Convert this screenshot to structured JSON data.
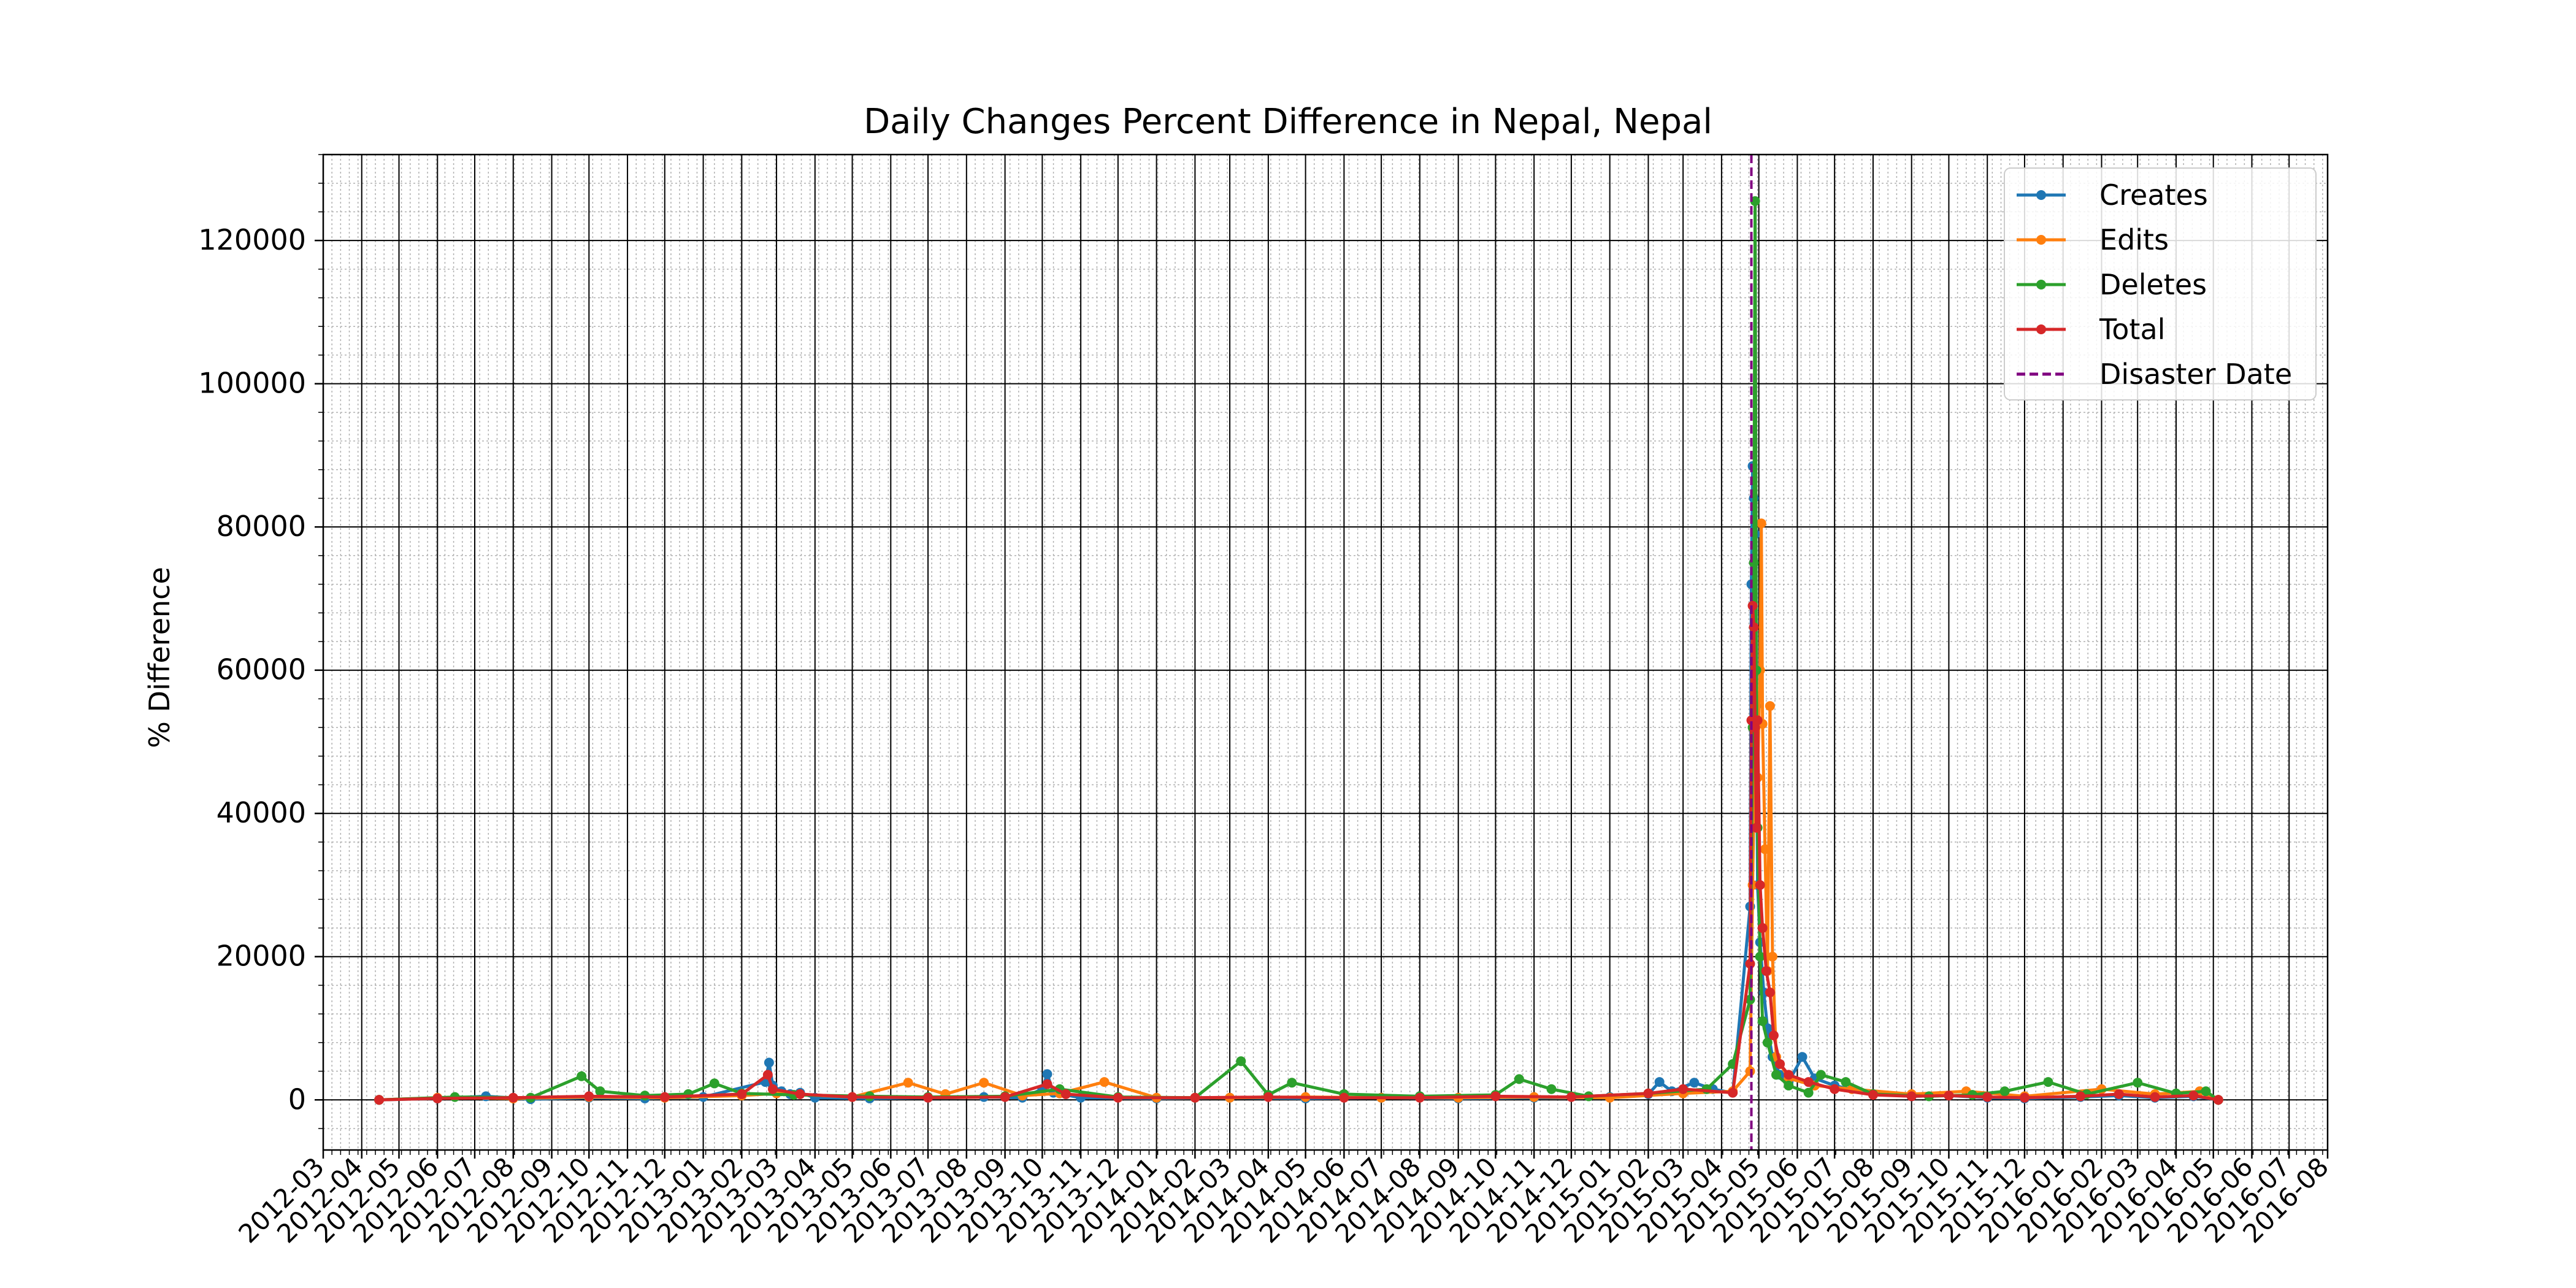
{
  "chart_data": {
    "type": "line",
    "title": "Daily Changes Percent Difference in Nepal, Nepal",
    "xlabel": "",
    "ylabel": "% Difference",
    "x_axis": {
      "type": "date",
      "range": [
        "2012-03-01",
        "2016-08-01"
      ],
      "tick_labels": [
        "2012-03",
        "2012-04",
        "2012-05",
        "2012-06",
        "2012-07",
        "2012-08",
        "2012-09",
        "2012-10",
        "2012-11",
        "2012-12",
        "2013-01",
        "2013-02",
        "2013-03",
        "2013-04",
        "2013-05",
        "2013-06",
        "2013-07",
        "2013-08",
        "2013-09",
        "2013-10",
        "2013-11",
        "2013-12",
        "2014-01",
        "2014-02",
        "2014-03",
        "2014-04",
        "2014-05",
        "2014-06",
        "2014-07",
        "2014-08",
        "2014-09",
        "2014-10",
        "2014-11",
        "2014-12",
        "2015-01",
        "2015-02",
        "2015-03",
        "2015-04",
        "2015-05",
        "2015-06",
        "2015-07",
        "2015-08",
        "2015-09",
        "2015-10",
        "2015-11",
        "2015-12",
        "2016-01",
        "2016-02",
        "2016-03",
        "2016-04",
        "2016-05",
        "2016-06",
        "2016-07",
        "2016-08"
      ]
    },
    "y_axis": {
      "range": [
        -7000,
        132000
      ],
      "tick_labels": [
        "0",
        "20000",
        "40000",
        "60000",
        "80000",
        "100000",
        "120000"
      ]
    },
    "grid": {
      "major": true,
      "minor": true
    },
    "legend": {
      "position": "top-right"
    },
    "disaster_date": {
      "label": "Disaster Date",
      "date": "2015-04-25",
      "color": "#800080"
    },
    "series": [
      {
        "name": "Creates",
        "color": "#1f77b4",
        "points": [
          [
            "2012-04-15",
            0
          ],
          [
            "2012-06-01",
            200
          ],
          [
            "2012-07-10",
            500
          ],
          [
            "2012-08-15",
            100
          ],
          [
            "2012-10-01",
            300
          ],
          [
            "2012-11-15",
            200
          ],
          [
            "2013-01-01",
            400
          ],
          [
            "2013-02-20",
            2500
          ],
          [
            "2013-02-23",
            5200
          ],
          [
            "2013-02-26",
            2000
          ],
          [
            "2013-03-05",
            1200
          ],
          [
            "2013-03-12",
            800
          ],
          [
            "2013-03-20",
            1000
          ],
          [
            "2013-04-01",
            300
          ],
          [
            "2013-05-15",
            200
          ],
          [
            "2013-07-01",
            300
          ],
          [
            "2013-08-15",
            400
          ],
          [
            "2013-09-15",
            300
          ],
          [
            "2013-10-01",
            1500
          ],
          [
            "2013-10-05",
            3600
          ],
          [
            "2013-10-10",
            1000
          ],
          [
            "2013-11-01",
            300
          ],
          [
            "2014-01-01",
            200
          ],
          [
            "2014-03-01",
            300
          ],
          [
            "2014-05-01",
            200
          ],
          [
            "2014-07-01",
            300
          ],
          [
            "2014-09-01",
            200
          ],
          [
            "2014-11-01",
            300
          ],
          [
            "2015-01-01",
            400
          ],
          [
            "2015-02-01",
            800
          ],
          [
            "2015-02-10",
            2500
          ],
          [
            "2015-02-20",
            1200
          ],
          [
            "2015-03-10",
            2400
          ],
          [
            "2015-03-25",
            1500
          ],
          [
            "2015-04-10",
            1000
          ],
          [
            "2015-04-24",
            27000
          ],
          [
            "2015-04-25",
            72000
          ],
          [
            "2015-04-26",
            88500
          ],
          [
            "2015-04-27",
            84000
          ],
          [
            "2015-04-28",
            79000
          ],
          [
            "2015-04-29",
            55000
          ],
          [
            "2015-04-30",
            30000
          ],
          [
            "2015-05-02",
            22000
          ],
          [
            "2015-05-05",
            15000
          ],
          [
            "2015-05-08",
            10000
          ],
          [
            "2015-05-12",
            6000
          ],
          [
            "2015-05-18",
            3500
          ],
          [
            "2015-05-25",
            2500
          ],
          [
            "2015-06-05",
            6000
          ],
          [
            "2015-06-15",
            3000
          ],
          [
            "2015-07-01",
            2000
          ],
          [
            "2015-08-01",
            800
          ],
          [
            "2015-09-01",
            500
          ],
          [
            "2015-10-01",
            600
          ],
          [
            "2015-11-01",
            300
          ],
          [
            "2015-12-01",
            200
          ],
          [
            "2016-01-15",
            400
          ],
          [
            "2016-02-15",
            600
          ],
          [
            "2016-03-15",
            300
          ],
          [
            "2016-04-15",
            500
          ],
          [
            "2016-05-05",
            0
          ]
        ]
      },
      {
        "name": "Edits",
        "color": "#ff7f0e",
        "points": [
          [
            "2012-04-15",
            0
          ],
          [
            "2012-06-01",
            300
          ],
          [
            "2012-08-01",
            200
          ],
          [
            "2012-10-01",
            400
          ],
          [
            "2012-12-01",
            300
          ],
          [
            "2013-02-01",
            600
          ],
          [
            "2013-03-01",
            900
          ],
          [
            "2013-05-01",
            400
          ],
          [
            "2013-06-15",
            2400
          ],
          [
            "2013-07-15",
            800
          ],
          [
            "2013-08-15",
            2400
          ],
          [
            "2013-09-15",
            600
          ],
          [
            "2013-10-15",
            900
          ],
          [
            "2013-11-20",
            2500
          ],
          [
            "2014-01-01",
            300
          ],
          [
            "2014-03-01",
            300
          ],
          [
            "2014-05-01",
            400
          ],
          [
            "2014-07-01",
            300
          ],
          [
            "2014-09-01",
            300
          ],
          [
            "2014-11-01",
            400
          ],
          [
            "2015-01-01",
            300
          ],
          [
            "2015-03-01",
            900
          ],
          [
            "2015-04-10",
            1200
          ],
          [
            "2015-04-24",
            4000
          ],
          [
            "2015-04-26",
            30000
          ],
          [
            "2015-04-28",
            52000
          ],
          [
            "2015-04-30",
            45000
          ],
          [
            "2015-05-02",
            60000
          ],
          [
            "2015-05-03",
            80500
          ],
          [
            "2015-05-04",
            52500
          ],
          [
            "2015-05-06",
            35000
          ],
          [
            "2015-05-08",
            18000
          ],
          [
            "2015-05-10",
            55000
          ],
          [
            "2015-05-12",
            20000
          ],
          [
            "2015-05-15",
            6000
          ],
          [
            "2015-05-25",
            3000
          ],
          [
            "2015-06-15",
            2000
          ],
          [
            "2015-07-15",
            1500
          ],
          [
            "2015-09-01",
            800
          ],
          [
            "2015-10-15",
            1200
          ],
          [
            "2015-12-01",
            500
          ],
          [
            "2016-02-01",
            1500
          ],
          [
            "2016-03-15",
            800
          ],
          [
            "2016-04-20",
            1200
          ],
          [
            "2016-05-05",
            0
          ]
        ]
      },
      {
        "name": "Deletes",
        "color": "#2ca02c",
        "points": [
          [
            "2012-04-15",
            0
          ],
          [
            "2012-06-15",
            400
          ],
          [
            "2012-08-15",
            300
          ],
          [
            "2012-09-25",
            3300
          ],
          [
            "2012-10-10",
            1200
          ],
          [
            "2012-11-15",
            600
          ],
          [
            "2012-12-20",
            800
          ],
          [
            "2013-01-10",
            2300
          ],
          [
            "2013-02-01",
            900
          ],
          [
            "2013-03-15",
            700
          ],
          [
            "2013-05-15",
            500
          ],
          [
            "2013-07-01",
            400
          ],
          [
            "2013-09-01",
            500
          ],
          [
            "2013-10-15",
            1500
          ],
          [
            "2013-12-01",
            400
          ],
          [
            "2014-02-01",
            300
          ],
          [
            "2014-03-10",
            5400
          ],
          [
            "2014-04-01",
            700
          ],
          [
            "2014-04-20",
            2400
          ],
          [
            "2014-06-01",
            800
          ],
          [
            "2014-08-01",
            500
          ],
          [
            "2014-10-01",
            700
          ],
          [
            "2014-10-20",
            2900
          ],
          [
            "2014-11-15",
            1500
          ],
          [
            "2014-12-15",
            500
          ],
          [
            "2015-02-01",
            900
          ],
          [
            "2015-03-20",
            1500
          ],
          [
            "2015-04-10",
            5000
          ],
          [
            "2015-04-24",
            14000
          ],
          [
            "2015-04-26",
            52000
          ],
          [
            "2015-04-27",
            75000
          ],
          [
            "2015-04-28",
            125500
          ],
          [
            "2015-04-29",
            60000
          ],
          [
            "2015-04-30",
            38000
          ],
          [
            "2015-05-02",
            20000
          ],
          [
            "2015-05-04",
            11000
          ],
          [
            "2015-05-08",
            8000
          ],
          [
            "2015-05-15",
            3500
          ],
          [
            "2015-05-25",
            2000
          ],
          [
            "2015-06-10",
            1000
          ],
          [
            "2015-06-20",
            3500
          ],
          [
            "2015-07-10",
            2500
          ],
          [
            "2015-08-01",
            800
          ],
          [
            "2015-09-15",
            500
          ],
          [
            "2015-10-20",
            700
          ],
          [
            "2015-11-15",
            1200
          ],
          [
            "2015-12-20",
            2500
          ],
          [
            "2016-01-20",
            800
          ],
          [
            "2016-03-01",
            2400
          ],
          [
            "2016-04-01",
            900
          ],
          [
            "2016-04-25",
            1200
          ],
          [
            "2016-05-05",
            0
          ]
        ]
      },
      {
        "name": "Total",
        "color": "#d62728",
        "points": [
          [
            "2012-04-15",
            0
          ],
          [
            "2012-06-01",
            200
          ],
          [
            "2012-08-01",
            300
          ],
          [
            "2012-10-01",
            500
          ],
          [
            "2012-12-01",
            400
          ],
          [
            "2013-02-01",
            800
          ],
          [
            "2013-02-22",
            3500
          ],
          [
            "2013-02-26",
            1500
          ],
          [
            "2013-03-20",
            800
          ],
          [
            "2013-05-01",
            400
          ],
          [
            "2013-07-01",
            300
          ],
          [
            "2013-09-01",
            400
          ],
          [
            "2013-10-05",
            2200
          ],
          [
            "2013-10-20",
            800
          ],
          [
            "2013-12-01",
            300
          ],
          [
            "2014-02-01",
            300
          ],
          [
            "2014-04-01",
            400
          ],
          [
            "2014-06-01",
            300
          ],
          [
            "2014-08-01",
            300
          ],
          [
            "2014-10-01",
            500
          ],
          [
            "2014-12-01",
            400
          ],
          [
            "2015-02-01",
            900
          ],
          [
            "2015-03-01",
            1500
          ],
          [
            "2015-04-10",
            1000
          ],
          [
            "2015-04-24",
            19000
          ],
          [
            "2015-04-25",
            53000
          ],
          [
            "2015-04-26",
            69000
          ],
          [
            "2015-04-27",
            66000
          ],
          [
            "2015-04-28",
            52000
          ],
          [
            "2015-04-29",
            38000
          ],
          [
            "2015-04-30",
            53000
          ],
          [
            "2015-05-02",
            30000
          ],
          [
            "2015-05-04",
            24000
          ],
          [
            "2015-05-07",
            18000
          ],
          [
            "2015-05-10",
            15000
          ],
          [
            "2015-05-13",
            9000
          ],
          [
            "2015-05-18",
            5000
          ],
          [
            "2015-05-25",
            3500
          ],
          [
            "2015-06-10",
            2500
          ],
          [
            "2015-07-01",
            1500
          ],
          [
            "2015-08-01",
            700
          ],
          [
            "2015-09-01",
            500
          ],
          [
            "2015-10-01",
            600
          ],
          [
            "2015-11-01",
            400
          ],
          [
            "2015-12-01",
            300
          ],
          [
            "2016-01-15",
            500
          ],
          [
            "2016-02-15",
            800
          ],
          [
            "2016-03-15",
            400
          ],
          [
            "2016-04-15",
            600
          ],
          [
            "2016-05-05",
            0
          ]
        ]
      }
    ]
  }
}
